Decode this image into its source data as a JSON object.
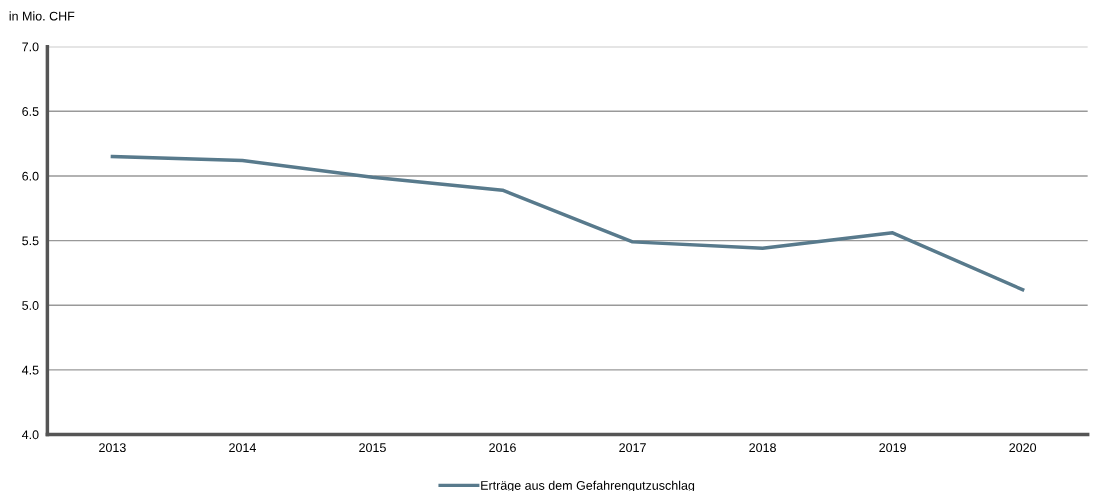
{
  "chart_data": {
    "type": "line",
    "ylabel": "in Mio. CHF",
    "categories": [
      "2013",
      "2014",
      "2015",
      "2016",
      "2017",
      "2018",
      "2019",
      "2020"
    ],
    "series": [
      {
        "name": "Erträge aus dem Gefahrengutzuschlag",
        "color": "#587a8c",
        "values": [
          6.15,
          6.12,
          5.99,
          5.89,
          5.49,
          5.44,
          5.56,
          5.12
        ]
      }
    ],
    "ylim": [
      4.0,
      7.0
    ],
    "yticks": [
      {
        "value": 4.0,
        "label": "4.0"
      },
      {
        "value": 4.5,
        "label": "4.5"
      },
      {
        "value": 5.0,
        "label": "5.0"
      },
      {
        "value": 5.5,
        "label": "5.5"
      },
      {
        "value": 6.0,
        "label": "6.0"
      },
      {
        "value": 6.5,
        "label": "6.5"
      },
      {
        "value": 7.0,
        "label": "7.0"
      }
    ],
    "grid": "y",
    "legend": "bottom",
    "marker": "none",
    "line_style": "solid"
  }
}
